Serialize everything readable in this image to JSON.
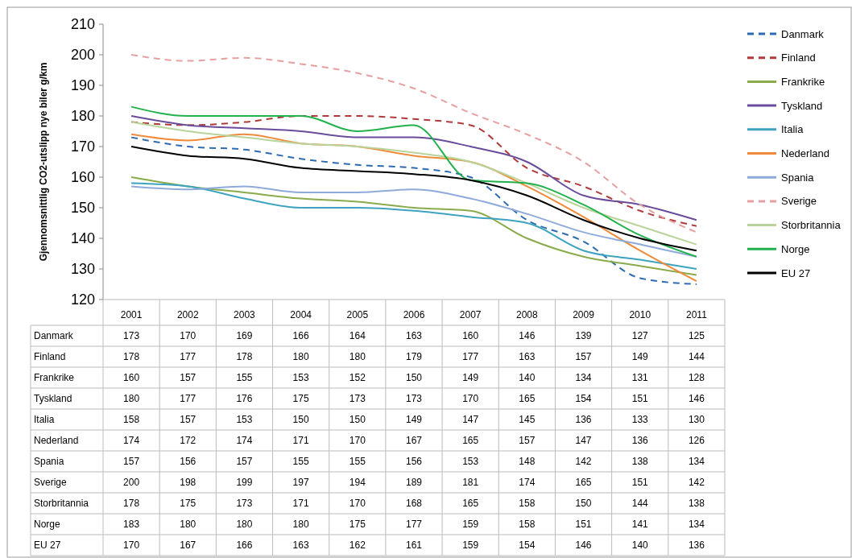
{
  "chart_data": {
    "type": "line",
    "ylabel": "Gjennomsnittlig CO2-utslipp nye biler g/km",
    "categories": [
      "2001",
      "2002",
      "2003",
      "2004",
      "2005",
      "2006",
      "2007",
      "2008",
      "2009",
      "2010",
      "2011"
    ],
    "ylim": [
      120,
      210
    ],
    "yticks": [
      120,
      130,
      140,
      150,
      160,
      170,
      180,
      190,
      200,
      210
    ],
    "grid": false,
    "legend": "right",
    "data_labels": true,
    "series": [
      {
        "name": "Danmark",
        "color": "#2e6bb0",
        "line_style": "dashed",
        "values": [
          173,
          170,
          169,
          166,
          164,
          163,
          160,
          146,
          139,
          127,
          125
        ]
      },
      {
        "name": "Finland",
        "color": "#b03a3a",
        "line_style": "dashed",
        "values": [
          178,
          177,
          178,
          180,
          180,
          179,
          177,
          163,
          157,
          149,
          144
        ]
      },
      {
        "name": "Frankrike",
        "color": "#8aab4a",
        "values": [
          160,
          157,
          155,
          153,
          152,
          150,
          149,
          140,
          134,
          131,
          128
        ]
      },
      {
        "name": "Tyskland",
        "color": "#6a4c9c",
        "values": [
          180,
          177,
          176,
          175,
          173,
          173,
          170,
          165,
          154,
          151,
          146
        ]
      },
      {
        "name": "Italia",
        "color": "#3ea3c0",
        "values": [
          158,
          157,
          153,
          150,
          150,
          149,
          147,
          145,
          136,
          133,
          130
        ]
      },
      {
        "name": "Nederland",
        "color": "#f08a3a",
        "values": [
          174,
          172,
          174,
          171,
          170,
          167,
          165,
          157,
          147,
          136,
          126
        ]
      },
      {
        "name": "Spania",
        "color": "#8eaadb",
        "values": [
          157,
          156,
          157,
          155,
          155,
          156,
          153,
          148,
          142,
          138,
          134
        ]
      },
      {
        "name": "Sverige",
        "color": "#e6a0a0",
        "line_style": "dashed",
        "values": [
          200,
          198,
          199,
          197,
          194,
          189,
          181,
          174,
          165,
          151,
          142
        ]
      },
      {
        "name": "Storbritannia",
        "color": "#b8d49a",
        "values": [
          178,
          175,
          173,
          171,
          170,
          168,
          165,
          158,
          150,
          144,
          138
        ]
      },
      {
        "name": "Norge",
        "color": "#22b14c",
        "values": [
          183,
          180,
          180,
          180,
          175,
          177,
          159,
          158,
          151,
          141,
          134
        ]
      },
      {
        "name": "EU 27",
        "color": "#000000",
        "values": [
          170,
          167,
          166,
          163,
          162,
          161,
          159,
          154,
          146,
          140,
          136
        ]
      }
    ]
  }
}
